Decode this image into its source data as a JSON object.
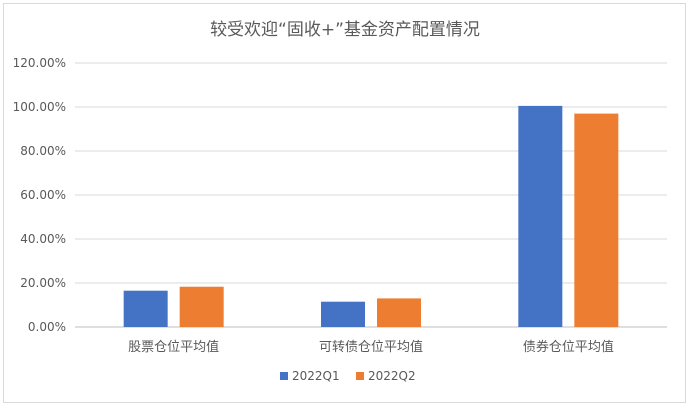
{
  "chart_data": {
    "type": "bar",
    "title": "较受欢迎“固收+”基金资产配置情况",
    "categories": [
      "股票仓位平均值",
      "可转债仓位平均值",
      "债券仓位平均值"
    ],
    "series": [
      {
        "name": "2022Q1",
        "values": [
          16.5,
          11.5,
          100.5
        ],
        "color": "#4472c4"
      },
      {
        "name": "2022Q2",
        "values": [
          18.3,
          13.0,
          97.0
        ],
        "color": "#ed7d31"
      }
    ],
    "yticks": [
      "0.00%",
      "20.00%",
      "40.00%",
      "60.00%",
      "80.00%",
      "100.00%",
      "120.00%"
    ],
    "ylim": [
      0,
      120
    ],
    "grid": true,
    "legend_position": "bottom"
  }
}
